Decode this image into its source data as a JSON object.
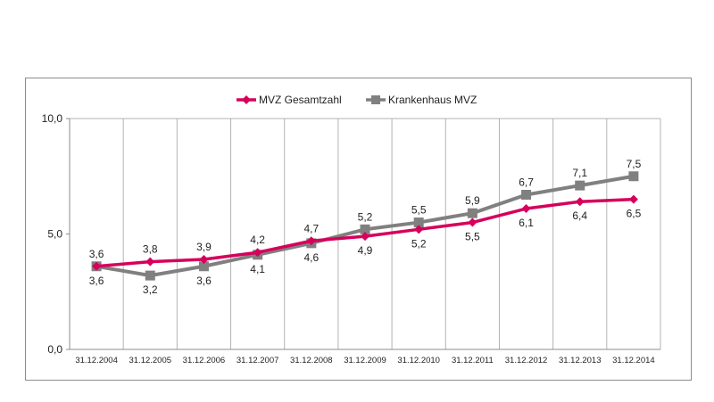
{
  "chart_data": {
    "type": "line",
    "categories": [
      "31.12.2004",
      "31.12.2005",
      "31.12.2006",
      "31.12.2007",
      "31.12.2008",
      "31.12.2009",
      "31.12.2010",
      "31.12.2011",
      "31.12.2012",
      "31.12.2013",
      "31.12.2014"
    ],
    "series": [
      {
        "name": "MVZ Gesamtzahl",
        "color": "#d6005c",
        "marker": "diamond",
        "values": [
          3.6,
          3.8,
          3.9,
          4.2,
          4.7,
          4.9,
          5.2,
          5.5,
          6.1,
          6.4,
          6.5
        ],
        "labels": [
          "3,6",
          "3,8",
          "3,9",
          "4,2",
          "4,7",
          "4,9",
          "5,2",
          "5,5",
          "6,1",
          "6,4",
          "6,5"
        ]
      },
      {
        "name": "Krankenhaus MVZ",
        "color": "#808080",
        "marker": "square",
        "values": [
          3.6,
          3.2,
          3.6,
          4.1,
          4.6,
          5.2,
          5.5,
          5.9,
          6.7,
          7.1,
          7.5
        ],
        "labels": [
          "3,6",
          "3,2",
          "3,6",
          "4,1",
          "4,6",
          "5,2",
          "5,5",
          "5,9",
          "6,7",
          "7,1",
          "7,5"
        ]
      }
    ],
    "ylim": [
      0,
      10
    ],
    "yticks": [
      0,
      5,
      10
    ],
    "ytick_labels": [
      "0,0",
      "5,0",
      "10,0"
    ],
    "grid": "vertical",
    "legend": "top-center",
    "title": "",
    "xlabel": "",
    "ylabel": ""
  }
}
